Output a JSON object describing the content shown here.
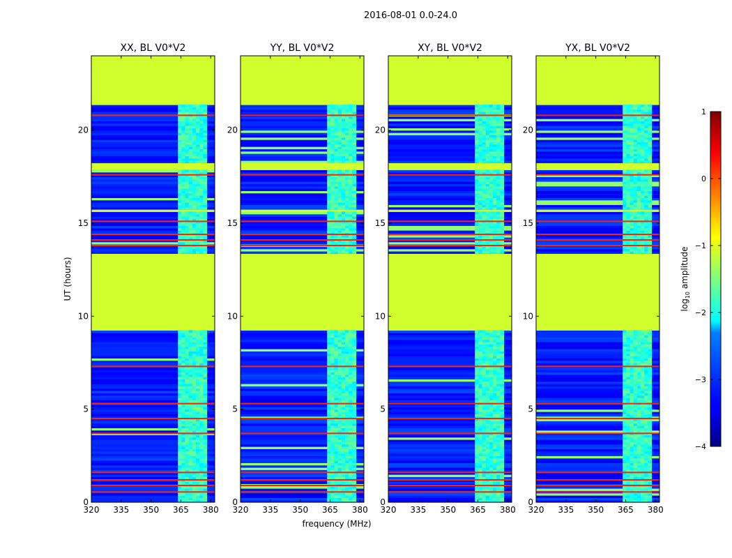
{
  "figure": {
    "suptitle": "2016-08-01 0.0-24.0",
    "xlabel": "frequency (MHz)",
    "ylabel": "UT (hours)"
  },
  "colorbar": {
    "label": "log10 amplitude",
    "label_main": "log",
    "label_sub": "10",
    "label_rest": " amplitude",
    "ticks": [
      "1",
      "0",
      "−1",
      "−2",
      "−3",
      "−4"
    ],
    "range": [
      -4,
      1
    ],
    "colormap": "jet"
  },
  "chart_data": [
    {
      "type": "heatmap",
      "title": "XX, BL V0*V2",
      "xlim": [
        320,
        382
      ],
      "ylim": [
        0,
        24
      ],
      "xticks": [
        "320",
        "335",
        "350",
        "365",
        "380"
      ],
      "yticks": [
        "0",
        "5",
        "10",
        "15",
        "20"
      ],
      "flagged_fill_value": -1.1,
      "flagged_ut_ranges": [
        [
          9.2,
          13.4
        ],
        [
          21.4,
          24.0
        ],
        [
          17.9,
          18.3
        ],
        [
          15.6,
          15.8
        ]
      ],
      "bright_band_mhz": [
        363.5,
        378
      ],
      "rfi_lines_ut": [
        0.55,
        0.9,
        1.2,
        1.6,
        3.7,
        4.5,
        5.3,
        7.3,
        13.8,
        14.1,
        14.4,
        15.1,
        17.6,
        20.8
      ]
    },
    {
      "type": "heatmap",
      "title": "YY, BL V0*V2",
      "xlim": [
        320,
        382
      ],
      "ylim": [
        0,
        24
      ],
      "xticks": [
        "320",
        "335",
        "350",
        "365",
        "380"
      ],
      "yticks": [
        "0",
        "5",
        "10",
        "15",
        "20"
      ],
      "flagged_fill_value": -1.1,
      "flagged_ut_ranges": [
        [
          9.2,
          13.4
        ],
        [
          21.4,
          24.0
        ],
        [
          17.9,
          18.3
        ],
        [
          15.6,
          15.8
        ]
      ],
      "bright_band_mhz": [
        363.5,
        378
      ],
      "rfi_lines_ut": [
        0.55,
        0.9,
        1.2,
        1.6,
        3.7,
        4.5,
        5.3,
        7.3,
        13.8,
        14.1,
        14.4,
        15.1,
        17.6,
        20.8
      ]
    },
    {
      "type": "heatmap",
      "title": "XY, BL V0*V2",
      "xlim": [
        320,
        382
      ],
      "ylim": [
        0,
        24
      ],
      "xticks": [
        "320",
        "335",
        "350",
        "365",
        "380"
      ],
      "yticks": [
        "0",
        "5",
        "10",
        "15",
        "20"
      ],
      "flagged_fill_value": -1.1,
      "flagged_ut_ranges": [
        [
          9.2,
          13.4
        ],
        [
          21.4,
          24.0
        ],
        [
          17.9,
          18.3
        ],
        [
          15.6,
          15.8
        ]
      ],
      "bright_band_mhz": [
        363.5,
        378
      ],
      "rfi_lines_ut": [
        0.55,
        0.9,
        1.2,
        1.6,
        3.7,
        4.5,
        5.3,
        7.3,
        13.8,
        14.1,
        14.4,
        15.1,
        17.6,
        20.8
      ]
    },
    {
      "type": "heatmap",
      "title": "YX, BL V0*V2",
      "xlim": [
        320,
        382
      ],
      "ylim": [
        0,
        24
      ],
      "xticks": [
        "320",
        "335",
        "350",
        "365",
        "380"
      ],
      "yticks": [
        "0",
        "5",
        "10",
        "15",
        "20"
      ],
      "flagged_fill_value": -1.1,
      "flagged_ut_ranges": [
        [
          9.2,
          13.4
        ],
        [
          21.4,
          24.0
        ],
        [
          17.9,
          18.3
        ],
        [
          15.6,
          15.8
        ]
      ],
      "bright_band_mhz": [
        363.5,
        378
      ],
      "rfi_lines_ut": [
        0.55,
        0.9,
        1.2,
        1.6,
        3.7,
        4.5,
        5.3,
        7.3,
        13.8,
        14.1,
        14.4,
        15.1,
        17.6,
        20.8
      ]
    }
  ]
}
